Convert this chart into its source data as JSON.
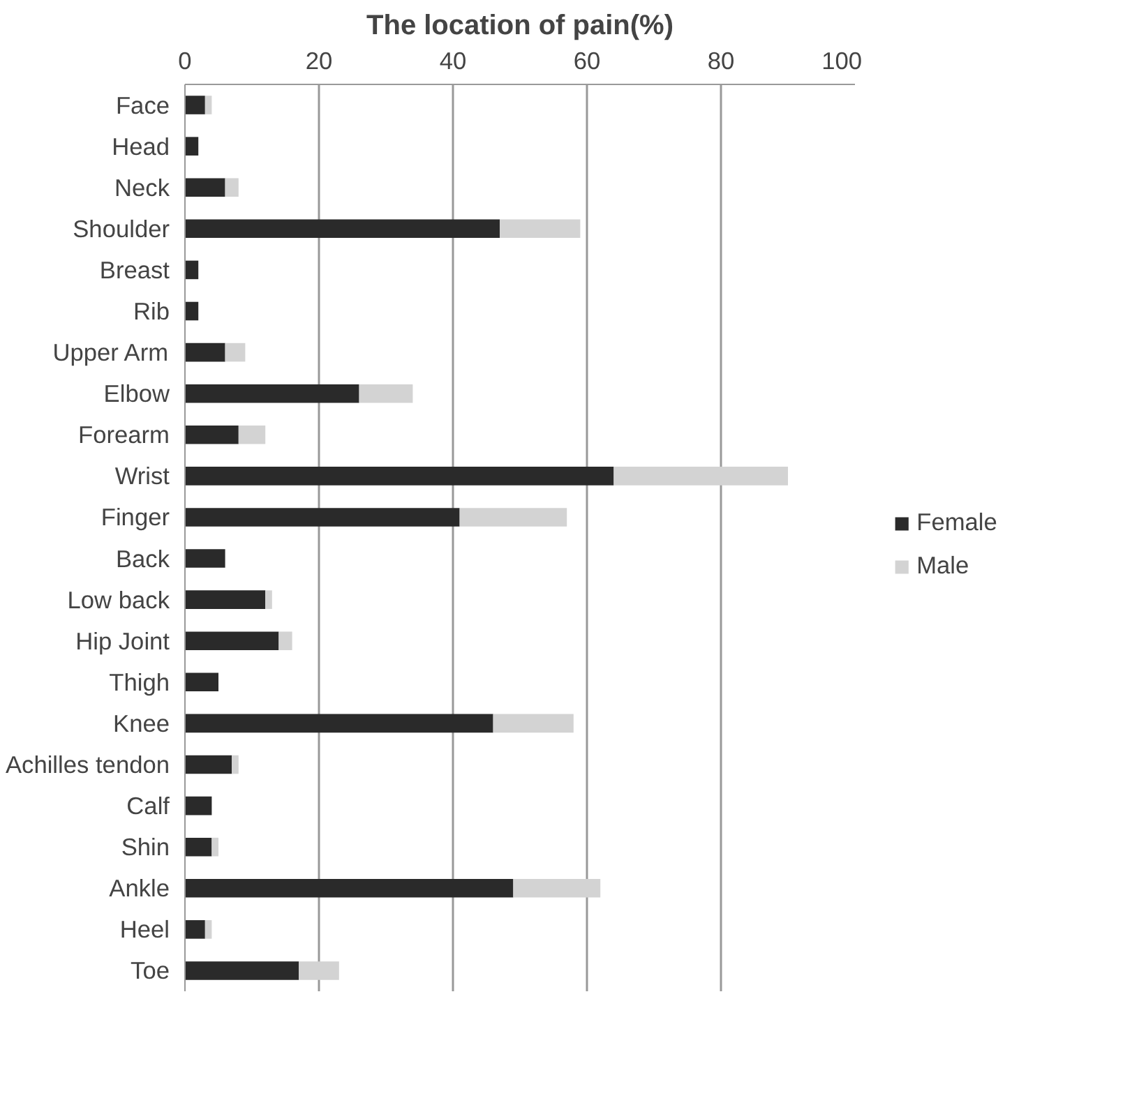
{
  "chart_data": {
    "type": "bar",
    "orientation": "horizontal",
    "stacked": true,
    "title": "The location of pain(%)",
    "categories": [
      "Face",
      "Head",
      "Neck",
      "Shoulder",
      "Breast",
      "Rib",
      "Upper Arm",
      "Elbow",
      "Forearm",
      "Wrist",
      "Finger",
      "Back",
      "Low back",
      "Hip Joint",
      "Thigh",
      "Knee",
      "Achilles tendon",
      "Calf",
      "Shin",
      "Ankle",
      "Heel",
      "Toe"
    ],
    "series": [
      {
        "name": "Female",
        "color": "#2a2a2a",
        "values": [
          3,
          2,
          6,
          47,
          2,
          2,
          6,
          26,
          8,
          64,
          41,
          6,
          12,
          14,
          5,
          46,
          7,
          4,
          4,
          49,
          3,
          17
        ]
      },
      {
        "name": "Male",
        "color": "#d3d3d3",
        "values": [
          1,
          0,
          2,
          12,
          0,
          0,
          3,
          8,
          4,
          26,
          16,
          0,
          1,
          2,
          0,
          12,
          1,
          0,
          1,
          13,
          1,
          6
        ]
      }
    ],
    "xlim": [
      0,
      100
    ],
    "xticks": [
      0,
      20,
      40,
      60,
      80,
      100
    ],
    "grid": "x",
    "legend": "right"
  }
}
